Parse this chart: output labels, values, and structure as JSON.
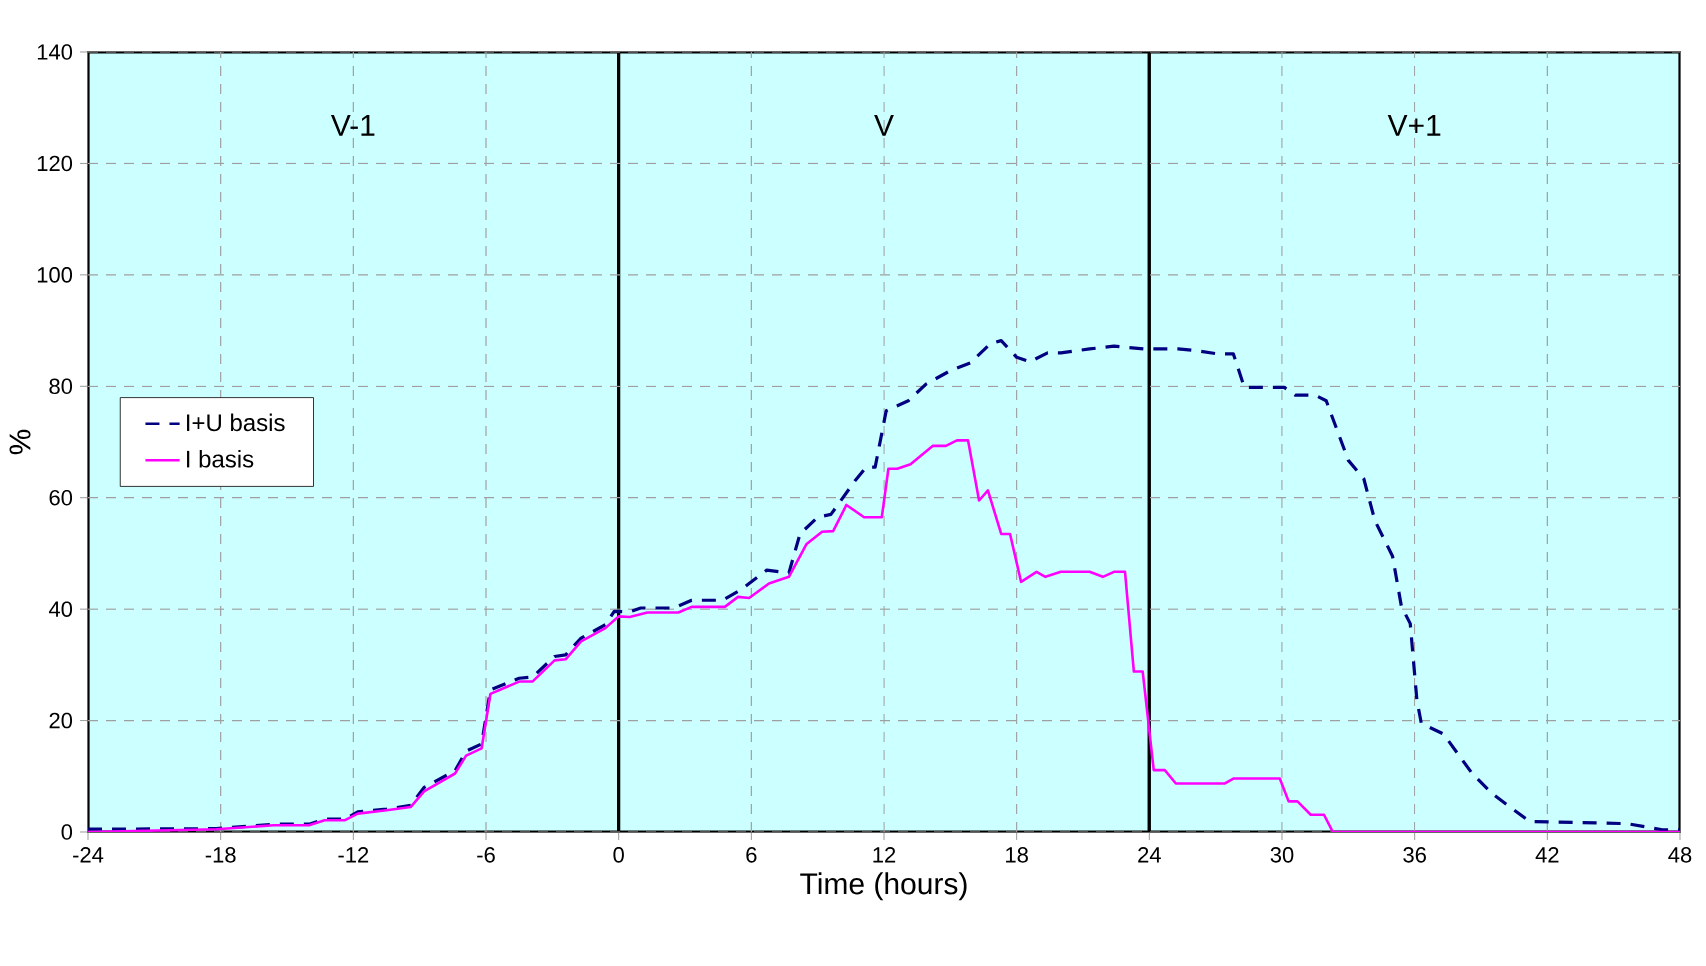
{
  "chart_data": {
    "type": "line",
    "xlabel": "Time (hours)",
    "ylabel": "%",
    "xlim": [
      -24,
      48
    ],
    "xticks": [
      -24,
      -18,
      -12,
      -6,
      0,
      6,
      12,
      18,
      24,
      30,
      36,
      42,
      48
    ],
    "ylim": [
      0,
      140
    ],
    "yticks": [
      0,
      20,
      40,
      60,
      80,
      100,
      120,
      140
    ],
    "grid": true,
    "legend": "left",
    "bands": [
      {
        "axis": "x",
        "from": -24,
        "to": 0,
        "label": "V-1",
        "color": "#ccffff"
      },
      {
        "axis": "x",
        "from": 0,
        "to": 24,
        "label": "V",
        "color": "#ccffff"
      },
      {
        "axis": "x",
        "from": 24,
        "to": 48,
        "label": "V+1",
        "color": "#ccffff"
      }
    ],
    "series": [
      {
        "name": "I+U basis",
        "color": "#000080",
        "line_style": "dashed",
        "x": [
          -24,
          -18.2,
          -15.6,
          -14,
          -13.3,
          -12.4,
          -11.8,
          -10.5,
          -9.4,
          -8.8,
          -7.4,
          -6.9,
          -6.2,
          -5.8,
          -4.5,
          -3.9,
          -2.9,
          -2.4,
          -1.7,
          -0.6,
          -0.2,
          0.5,
          1,
          2.5,
          3.3,
          4.7,
          5.5,
          6.7,
          7.7,
          8.2,
          9,
          9.6,
          10.7,
          11.2,
          11.6,
          12.1,
          13.1,
          13.9,
          15,
          15.9,
          16.8,
          17.3,
          18,
          18.6,
          19.4,
          20,
          21.3,
          22.4,
          23.8,
          25.3,
          26.1,
          27.1,
          27.8,
          28.3,
          30.1,
          30.6,
          31.5,
          32,
          33,
          33.7,
          34.2,
          35,
          35.4,
          35.8,
          36.1,
          36.3,
          37.3,
          38.6,
          39.5,
          40.1,
          41.2,
          45.6,
          47.2,
          48
        ],
        "values": [
          0.5,
          0.6,
          1.4,
          1.4,
          2.3,
          2.3,
          3.6,
          4.1,
          4.8,
          8,
          11,
          14.5,
          15.8,
          25.5,
          27.6,
          27.8,
          31.5,
          31.8,
          34.8,
          37.2,
          39.6,
          39.5,
          40.2,
          40.2,
          41.6,
          41.6,
          43.4,
          47,
          46.5,
          53.5,
          56.5,
          57,
          63.1,
          65.5,
          65.5,
          75.6,
          77.4,
          80.4,
          82.8,
          84.2,
          87.6,
          88.2,
          85.2,
          84.4,
          86,
          86,
          86.7,
          87.2,
          86.7,
          86.7,
          86.4,
          85.8,
          85.8,
          79.8,
          79.8,
          78.4,
          78.4,
          77.4,
          66.7,
          63.4,
          55.9,
          49.5,
          40.5,
          37.4,
          23.7,
          19.5,
          17.6,
          10.5,
          6.9,
          5.1,
          1.9,
          1.5,
          0.4,
          0.4
        ]
      },
      {
        "name": "I basis",
        "color": "#ff00ff",
        "line_style": "solid",
        "x": [
          -24,
          -18.2,
          -15.6,
          -14,
          -13.3,
          -12.4,
          -11.8,
          -10.5,
          -9.4,
          -8.8,
          -7.4,
          -6.9,
          -6.2,
          -5.8,
          -4.5,
          -3.9,
          -2.9,
          -2.4,
          -1.7,
          -0.6,
          0,
          0.5,
          1.3,
          2.7,
          3.3,
          4.8,
          5.4,
          5.9,
          6.8,
          7.7,
          8.5,
          9.2,
          9.7,
          10.3,
          11.1,
          11.9,
          12.2,
          12.6,
          13.2,
          14.2,
          14.8,
          15.3,
          15.8,
          16.3,
          16.7,
          17.3,
          17.7,
          18.2,
          18.9,
          19.3,
          20,
          21.3,
          21.9,
          22.4,
          22.9,
          23.3,
          23.7,
          24.2,
          24.7,
          25.2,
          27.4,
          27.8,
          29.9,
          30.3,
          30.7,
          31.3,
          31.9,
          32.3,
          48
        ],
        "values": [
          0,
          0.5,
          1.2,
          1.2,
          2.1,
          2.1,
          3.3,
          3.9,
          4.5,
          7.3,
          10.5,
          13.7,
          15,
          24.8,
          27,
          27,
          30.8,
          31,
          34.2,
          36.6,
          38.7,
          38.6,
          39.4,
          39.4,
          40.4,
          40.4,
          42.2,
          42,
          44.6,
          45.8,
          51.7,
          53.9,
          54,
          58.7,
          56.5,
          56.5,
          65.2,
          65.2,
          66,
          69.3,
          69.3,
          70.3,
          70.3,
          59.5,
          61.3,
          53.5,
          53.5,
          44.9,
          46.7,
          45.8,
          46.7,
          46.7,
          45.8,
          46.7,
          46.7,
          28.8,
          28.8,
          11.1,
          11.1,
          8.7,
          8.7,
          9.6,
          9.6,
          5.5,
          5.5,
          3.1,
          3.1,
          0,
          0
        ]
      }
    ]
  }
}
